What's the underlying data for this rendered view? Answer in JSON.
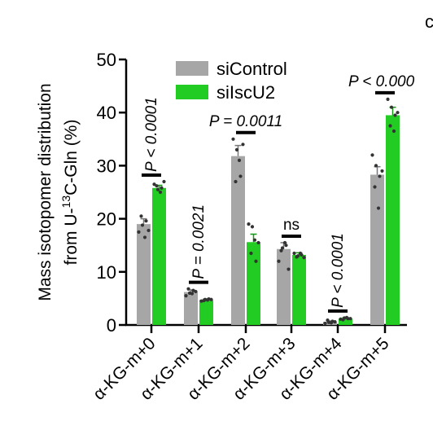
{
  "corner_glyph": "c",
  "chart_data": {
    "type": "bar",
    "ylabel_line1": "Mass isotopomer distribution",
    "ylabel_line2_prefix": "from U-",
    "ylabel_line2_super": "13",
    "ylabel_line2_suffix": "C-Gln (%)",
    "ylim": [
      0,
      50
    ],
    "yticks": [
      0,
      10,
      20,
      30,
      40,
      50
    ],
    "categories": [
      "α-KG-m+0",
      "α-KG-m+1",
      "α-KG-m+2",
      "α-KG-m+3",
      "α-KG-m+4",
      "α-KG-m+5"
    ],
    "series": [
      {
        "name": "siControl",
        "color": "#a6a6a6",
        "values": [
          19.0,
          6.2,
          31.8,
          14.3,
          0.6,
          28.3
        ],
        "errors": [
          1.0,
          0.4,
          2.0,
          1.2,
          0.15,
          1.5
        ],
        "points": [
          [
            17.5,
            18.8,
            19.6,
            20.5,
            16.5,
            17.8
          ],
          [
            5.5,
            6.0,
            6.5,
            6.8,
            5.9,
            6.3
          ],
          [
            35,
            33,
            28,
            27,
            31,
            34
          ],
          [
            12,
            14.5,
            15,
            14,
            15.5,
            10.5
          ],
          [
            0.3,
            0.5,
            0.7,
            0.9,
            0.4,
            0.6
          ],
          [
            32,
            30,
            28,
            26,
            22,
            29
          ]
        ]
      },
      {
        "name": "siIscU2",
        "color": "#22cc22",
        "values": [
          25.8,
          4.7,
          15.6,
          13.2,
          1.2,
          39.5
        ],
        "errors": [
          0.5,
          0.2,
          1.5,
          0.4,
          0.15,
          1.5
        ],
        "points": [
          [
            26.5,
            25.5,
            25.8,
            26.2,
            25.0,
            27.0
          ],
          [
            4.5,
            4.8,
            4.9,
            4.6,
            4.7,
            4.8
          ],
          [
            19,
            18.5,
            12,
            13.5,
            16,
            15.5
          ],
          [
            13.5,
            13,
            13.2,
            12.8,
            13.5,
            12.7
          ],
          [
            1.1,
            1.3,
            1.2,
            1.0,
            1.4,
            1.2
          ],
          [
            42.5,
            41,
            39.5,
            37.5,
            36.5,
            40
          ]
        ]
      }
    ],
    "annotations": [
      {
        "group": 0,
        "text": "P < 0.0001",
        "orientation": "vertical"
      },
      {
        "group": 1,
        "text": "P = 0.0021",
        "orientation": "vertical"
      },
      {
        "group": 2,
        "text": "P = 0.0011",
        "orientation": "horizontal"
      },
      {
        "group": 3,
        "text": "ns",
        "orientation": "horizontal"
      },
      {
        "group": 4,
        "text": "P < 0.0001",
        "orientation": "vertical"
      },
      {
        "group": 5,
        "text": "P < 0.000",
        "orientation": "horizontal"
      }
    ]
  }
}
